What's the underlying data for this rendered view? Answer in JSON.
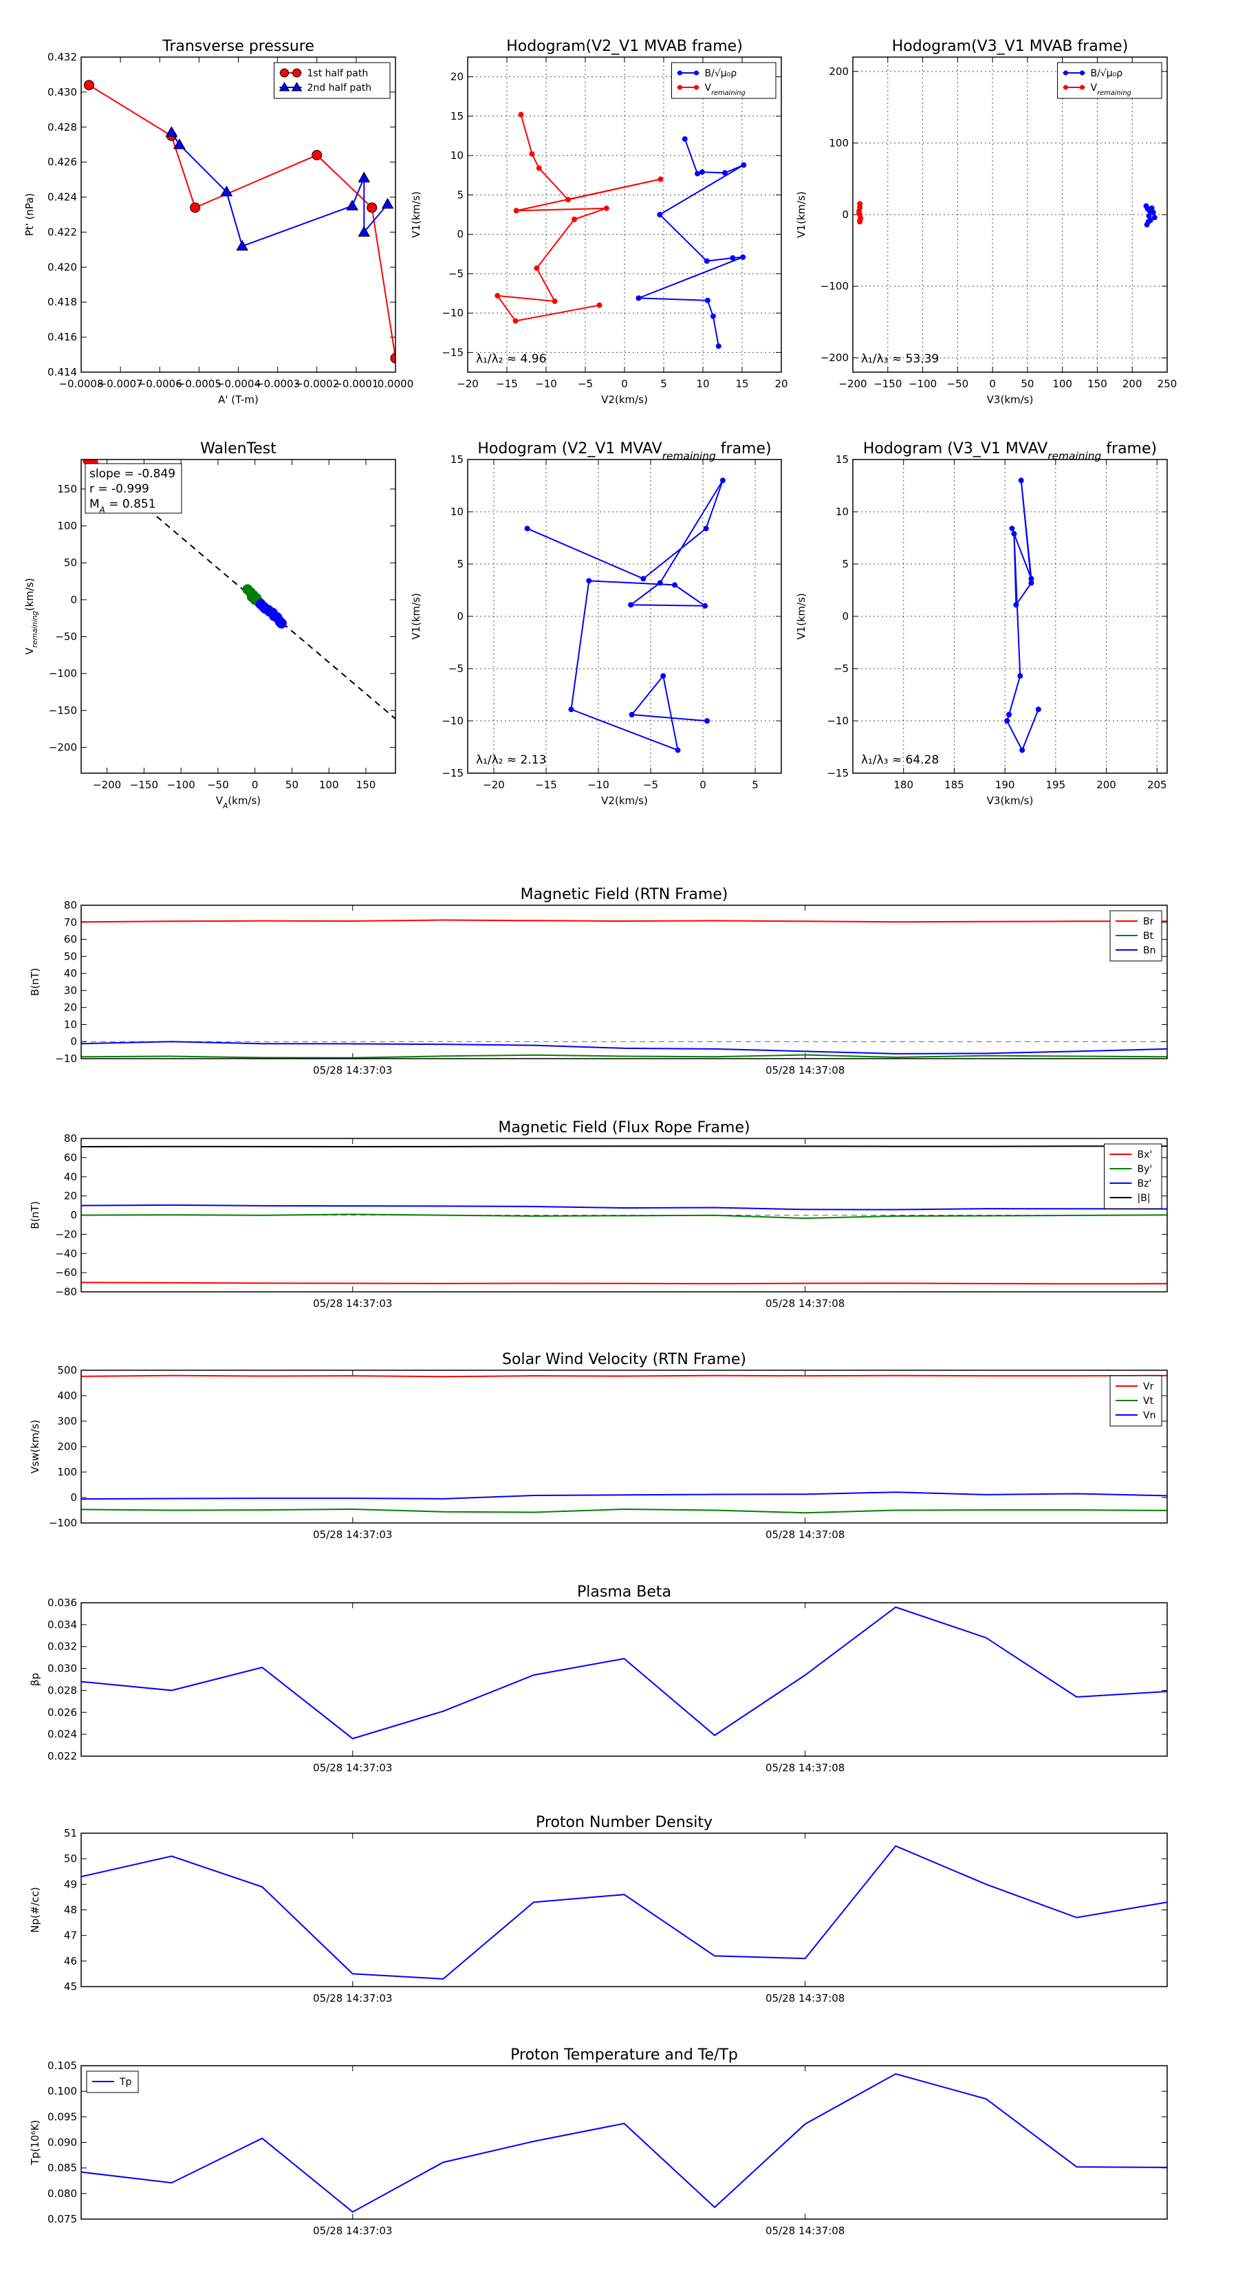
{
  "chart_data": [
    {
      "id": "transverse",
      "type": "line",
      "title": "Transverse pressure",
      "xlabel": "A' (T-m)",
      "ylabel": "Pt' (nPa)",
      "xlim": [
        -0.0008,
        0.0
      ],
      "ylim": [
        0.414,
        0.432
      ],
      "xticks": [
        -0.0008,
        -0.0007,
        -0.0006,
        -0.0005,
        -0.0004,
        -0.0003,
        -0.0002,
        -0.0001,
        0.0
      ],
      "xtick_labels": [
        "−0.0008",
        "−0.0007",
        "−0.0006",
        "−0.0005",
        "−0.0004",
        "−0.0003",
        "−0.0002",
        "−0.0001",
        "0.0000"
      ],
      "yticks": [
        0.414,
        0.416,
        0.418,
        0.42,
        0.422,
        0.424,
        0.426,
        0.428,
        0.43,
        0.432
      ],
      "ytick_labels": [
        "0.414",
        "0.416",
        "0.418",
        "0.420",
        "0.422",
        "0.424",
        "0.426",
        "0.428",
        "0.430",
        "0.432"
      ],
      "legend": "top-right",
      "series": [
        {
          "name": "1st half path",
          "color": "#ff0000",
          "marker": "circle",
          "x": [
            -0.00078,
            -0.00057,
            -0.00051,
            -0.0002,
            -6e-05,
            0.0
          ],
          "y": [
            0.4304,
            0.4275,
            0.4234,
            0.4264,
            0.4234,
            0.4148
          ]
        },
        {
          "name": "2nd half path",
          "color": "#0000ff",
          "marker": "triangle",
          "x": [
            -0.00057,
            -0.00055,
            -0.00043,
            -0.00039,
            -0.00011,
            -8e-05,
            -8e-05,
            -2e-05
          ],
          "y": [
            0.4277,
            0.427,
            0.4243,
            0.4212,
            0.4235,
            0.4251,
            0.422,
            0.4236
          ]
        }
      ]
    },
    {
      "id": "hodo-v2v1-mvab",
      "type": "line",
      "title": "Hodogram(V2_V1 MVAB frame)",
      "xlabel": "V2(km/s)",
      "ylabel": "V1(km/s)",
      "xlim": [
        -20,
        20
      ],
      "ylim": [
        -17.5,
        22.5
      ],
      "xticks": [
        -20,
        -15,
        -10,
        -5,
        0,
        5,
        10,
        15,
        20
      ],
      "yticks": [
        -15,
        -10,
        -5,
        0,
        5,
        10,
        15,
        20
      ],
      "grid": true,
      "annotation": "λ₁/λ₂ ≈ 4.96",
      "legend": "top-right",
      "series": [
        {
          "name": "B/√μ₀ρ",
          "color": "#0000ff",
          "marker": "dot",
          "x": [
            7.7,
            9.3,
            9.9,
            12.8,
            15.2,
            4.5,
            10.5,
            13.8,
            15.1,
            1.8,
            10.6,
            11.3,
            12
          ],
          "y": [
            12.1,
            7.7,
            7.9,
            7.8,
            8.8,
            2.5,
            -3.4,
            -3,
            -2.9,
            -8.1,
            -8.4,
            -10.4,
            -14.2
          ]
        },
        {
          "name": "V_remaining",
          "color": "#ff0000",
          "marker": "dot",
          "x": [
            -13.2,
            -11.8,
            -10.9,
            -7.2,
            4.6,
            -13.8,
            -2.3,
            -6.4,
            -11.2,
            -8.9,
            -16.2,
            -13.9,
            -3.2
          ],
          "y": [
            15.2,
            10.2,
            8.4,
            4.4,
            7,
            3,
            3.3,
            1.9,
            -4.3,
            -8.5,
            -7.8,
            -11,
            -9
          ]
        }
      ]
    },
    {
      "id": "hodo-v3v1-mvab",
      "type": "scatter",
      "title": "Hodogram(V3_V1 MVAB frame)",
      "xlabel": "V3(km/s)",
      "ylabel": "V1(km/s)",
      "xlim": [
        -200,
        250
      ],
      "ylim": [
        -220,
        220
      ],
      "xticks": [
        -200,
        -150,
        -100,
        -50,
        0,
        50,
        100,
        150,
        200,
        250
      ],
      "yticks": [
        -200,
        -100,
        0,
        100,
        200
      ],
      "grid": true,
      "annotation": "λ₁/λ₃ ≈ 53.39",
      "legend": "top-right",
      "series": [
        {
          "name": "B/√μ₀ρ",
          "color": "#0000ff",
          "marker": "dot",
          "x": [
            220,
            222,
            225,
            228,
            224,
            230,
            221,
            226,
            232,
            223
          ],
          "y": [
            12,
            8,
            5,
            9,
            -2,
            3,
            -14,
            -8,
            -4,
            -10
          ]
        },
        {
          "name": "V_remaining",
          "color": "#ff0000",
          "marker": "dot",
          "x": [
            -190,
            -190,
            -191,
            -190,
            -189,
            -190,
            -190,
            -191
          ],
          "y": [
            15,
            10,
            5,
            0,
            -5,
            -8,
            -10,
            2
          ]
        }
      ]
    },
    {
      "id": "walen",
      "type": "scatter",
      "title": "WalenTest",
      "xlabel": "V_A(km/s)",
      "ylabel": "V_remaining(km/s)",
      "xlim": [
        -235,
        190
      ],
      "ylim": [
        -235,
        190
      ],
      "xticks": [
        -200,
        -150,
        -100,
        -50,
        0,
        50,
        100,
        150
      ],
      "yticks": [
        -200,
        -150,
        -100,
        -50,
        0,
        50,
        100,
        150
      ],
      "stats": [
        "slope = -0.849",
        "r = -0.999",
        "M_A = 0.851"
      ],
      "fit": {
        "slope": -0.849,
        "intercept": 0
      },
      "series": [
        {
          "name": "red",
          "color": "#ff0000",
          "x": [
            -220,
            -222,
            -225,
            -223,
            -221,
            -224,
            -219,
            -226
          ],
          "y": [
            188,
            186,
            189,
            185,
            187,
            188,
            186,
            189
          ]
        },
        {
          "name": "green",
          "color": "#008000",
          "x": [
            -10,
            -6,
            -2,
            2,
            4,
            -4,
            0,
            6
          ],
          "y": [
            14,
            10,
            6,
            2,
            -2,
            4,
            0,
            -4
          ]
        },
        {
          "name": "blue",
          "color": "#0000ff",
          "x": [
            8,
            14,
            20,
            26,
            30,
            34,
            24,
            18,
            36,
            12
          ],
          "y": [
            -6,
            -12,
            -16,
            -22,
            -24,
            -30,
            -18,
            -14,
            -32,
            -10
          ]
        }
      ]
    },
    {
      "id": "hodo-v2v1-mvav",
      "type": "line",
      "title": "Hodogram (V2_V1 MVAV_remaining frame)",
      "xlabel": "V2(km/s)",
      "ylabel": "V1(km/s)",
      "xlim": [
        -22.5,
        7.5
      ],
      "ylim": [
        -15,
        15
      ],
      "xticks": [
        -20,
        -15,
        -10,
        -5,
        0,
        5
      ],
      "yticks": [
        -15,
        -10,
        -5,
        0,
        5,
        10,
        15
      ],
      "grid": true,
      "annotation": "λ₁/λ₂ ≈ 2.13",
      "series": [
        {
          "name": "",
          "color": "#0000ff",
          "marker": "dot",
          "x": [
            -16.8,
            -5.7,
            0.3,
            1.9,
            -4.1,
            -6.9,
            0.2,
            -2.7,
            -10.9,
            -12.6,
            -2.4,
            -3.8,
            -6.8,
            0.4
          ],
          "y": [
            8.4,
            3.6,
            8.4,
            13,
            3.2,
            1.1,
            1,
            3,
            3.4,
            -8.9,
            -12.8,
            -5.7,
            -9.4,
            -10
          ]
        }
      ]
    },
    {
      "id": "hodo-v3v1-mvav",
      "type": "line",
      "title": "Hodogram (V3_V1 MVAV_remaining frame)",
      "xlabel": "V3(km/s)",
      "ylabel": "V1(km/s)",
      "xlim": [
        175,
        206
      ],
      "ylim": [
        -15,
        15
      ],
      "xticks": [
        180,
        185,
        190,
        195,
        200,
        205
      ],
      "yticks": [
        -15,
        -10,
        -5,
        0,
        5,
        10,
        15
      ],
      "grid": true,
      "annotation": "λ₁/λ₃ ≈ 64.28",
      "series": [
        {
          "name": "",
          "color": "#0000ff",
          "marker": "dot",
          "x": [
            190.7,
            192.6,
            191.6,
            192.6,
            191.1,
            190.9,
            191.5,
            190.4,
            190.2,
            191.7,
            193.3
          ],
          "y": [
            8.4,
            3.6,
            13,
            3.2,
            1.1,
            7.9,
            -5.7,
            -9.4,
            -10,
            -12.8,
            -8.9
          ]
        }
      ]
    },
    {
      "id": "mag-rtn",
      "type": "line",
      "title": "Magnetic Field (RTN Frame)",
      "ylabel": "B(nT)",
      "ylim": [
        -10,
        80
      ],
      "yticks": [
        -10,
        0,
        10,
        20,
        30,
        40,
        50,
        60,
        70,
        80
      ],
      "x": [
        0,
        1,
        2,
        3,
        4,
        5,
        6,
        7,
        8,
        9,
        10,
        11,
        12
      ],
      "xticks": [
        3,
        8
      ],
      "xtick_labels": [
        "05/28 14:37:03",
        "05/28 14:37:08"
      ],
      "zero_line": true,
      "legend": "top-right",
      "series": [
        {
          "name": "Br",
          "color": "#ff0000",
          "values": [
            70.2,
            70.6,
            70.8,
            70.7,
            71.3,
            71,
            70.7,
            70.9,
            70.6,
            70.2,
            70.4,
            70.6,
            70.6
          ]
        },
        {
          "name": "Bt",
          "color": "#008000",
          "values": [
            -8.9,
            -8.6,
            -9.4,
            -9.5,
            -8.5,
            -7.9,
            -8.6,
            -8.9,
            -7.8,
            -9.2,
            -8.3,
            -8.6,
            -8.9
          ]
        },
        {
          "name": "Bn",
          "color": "#0000ff",
          "values": [
            -1.2,
            0,
            -1.2,
            -1.3,
            -1.6,
            -2.2,
            -3.9,
            -4.3,
            -5.7,
            -7.1,
            -6.9,
            -5.7,
            -4.3
          ]
        }
      ]
    },
    {
      "id": "mag-fr",
      "type": "line",
      "title": "Magnetic Field (Flux Rope Frame)",
      "ylabel": "B(nT)",
      "ylim": [
        -80,
        80
      ],
      "yticks": [
        -80,
        -60,
        -40,
        -20,
        0,
        20,
        40,
        60,
        80
      ],
      "x": [
        0,
        1,
        2,
        3,
        4,
        5,
        6,
        7,
        8,
        9,
        10,
        11,
        12
      ],
      "xticks": [
        3,
        8
      ],
      "xtick_labels": [
        "05/28 14:37:03",
        "05/28 14:37:08"
      ],
      "zero_line": true,
      "legend": "top-right",
      "series": [
        {
          "name": "Bx'",
          "color": "#ff0000",
          "values": [
            -70.2,
            -70.6,
            -70.9,
            -71.1,
            -71.3,
            -71.1,
            -71.2,
            -71.5,
            -71.1,
            -71,
            -71.4,
            -71.6,
            -71.5
          ]
        },
        {
          "name": "By'",
          "color": "#008000",
          "values": [
            0,
            0.3,
            -0.2,
            0.8,
            -0.1,
            -1,
            -0.6,
            -0.2,
            -3.2,
            -1,
            -0.7,
            -0.3,
            0.2
          ]
        },
        {
          "name": "Bz'",
          "color": "#0000ff",
          "values": [
            10,
            10.5,
            9.8,
            9.6,
            9.4,
            9,
            7.5,
            7.9,
            5.9,
            5.7,
            6.7,
            6.6,
            6.5
          ]
        },
        {
          "name": "|B|",
          "color": "#000000",
          "values": [
            71.4,
            71.6,
            71.5,
            71.4,
            71.5,
            71.8,
            71.9,
            71.9,
            71.8,
            71.7,
            71.7,
            71.9,
            71.9
          ]
        }
      ]
    },
    {
      "id": "vsw",
      "type": "line",
      "title": "Solar Wind Velocity (RTN Frame)",
      "ylabel": "Vsw(km/s)",
      "ylim": [
        -100,
        500
      ],
      "yticks": [
        -100,
        0,
        100,
        200,
        300,
        400,
        500
      ],
      "x": [
        0,
        1,
        2,
        3,
        4,
        5,
        6,
        7,
        8,
        9,
        10,
        11,
        12
      ],
      "xticks": [
        3,
        8
      ],
      "xtick_labels": [
        "05/28 14:37:03",
        "05/28 14:37:08"
      ],
      "legend": "top-right",
      "series": [
        {
          "name": "Vr",
          "color": "#ff0000",
          "values": [
            476,
            479,
            477,
            478,
            475,
            478,
            477,
            479,
            478,
            479,
            478,
            478,
            479
          ]
        },
        {
          "name": "Vt",
          "color": "#008000",
          "values": [
            -47,
            -50,
            -49,
            -46,
            -56,
            -58,
            -46,
            -50,
            -60,
            -50,
            -49,
            -49,
            -51
          ]
        },
        {
          "name": "Vn",
          "color": "#0000ff",
          "values": [
            -6,
            -4,
            -3,
            -3,
            -5,
            8,
            10,
            12,
            13,
            21,
            11,
            15,
            7
          ]
        }
      ]
    },
    {
      "id": "beta",
      "type": "line",
      "title": "Plasma Beta",
      "ylabel": "βp",
      "ylim": [
        0.022,
        0.036
      ],
      "yticks": [
        0.022,
        0.024,
        0.026,
        0.028,
        0.03,
        0.032,
        0.034,
        0.036
      ],
      "ytick_labels": [
        "0.022",
        "0.024",
        "0.026",
        "0.028",
        "0.030",
        "0.032",
        "0.034",
        "0.036"
      ],
      "x": [
        0,
        1,
        2,
        3,
        4,
        5,
        6,
        7,
        8,
        9,
        10,
        11,
        12
      ],
      "xticks": [
        3,
        8
      ],
      "xtick_labels": [
        "05/28 14:37:03",
        "05/28 14:37:08"
      ],
      "series": [
        {
          "name": "",
          "color": "#0000ff",
          "values": [
            0.0288,
            0.028,
            0.0301,
            0.0236,
            0.0261,
            0.0294,
            0.0309,
            0.0239,
            0.0294,
            0.0356,
            0.0328,
            0.0274,
            0.0279
          ]
        }
      ]
    },
    {
      "id": "np",
      "type": "line",
      "title": "Proton Number Density",
      "ylabel": "Np(#/cc)",
      "ylim": [
        45,
        51
      ],
      "yticks": [
        45,
        46,
        47,
        48,
        49,
        50,
        51
      ],
      "x": [
        0,
        1,
        2,
        3,
        4,
        5,
        6,
        7,
        8,
        9,
        10,
        11,
        12
      ],
      "xticks": [
        3,
        8
      ],
      "xtick_labels": [
        "05/28 14:37:03",
        "05/28 14:37:08"
      ],
      "series": [
        {
          "name": "",
          "color": "#0000ff",
          "values": [
            49.3,
            50.1,
            48.9,
            45.5,
            45.3,
            48.3,
            48.6,
            46.2,
            46.1,
            50.5,
            49,
            47.7,
            48.3
          ]
        }
      ]
    },
    {
      "id": "tp",
      "type": "line",
      "title": "Proton Temperature and Te/Tp",
      "ylabel": "Tp(10⁶K)",
      "ylim": [
        0.075,
        0.105
      ],
      "yticks": [
        0.075,
        0.08,
        0.085,
        0.09,
        0.095,
        0.1,
        0.105
      ],
      "ytick_labels": [
        "0.075",
        "0.080",
        "0.085",
        "0.090",
        "0.095",
        "0.100",
        "0.105"
      ],
      "x": [
        0,
        1,
        2,
        3,
        4,
        5,
        6,
        7,
        8,
        9,
        10,
        11,
        12
      ],
      "xticks": [
        3,
        8
      ],
      "xtick_labels": [
        "05/28 14:37:03",
        "05/28 14:37:08"
      ],
      "legend": "top-left",
      "series": [
        {
          "name": "Tp",
          "color": "#0000ff",
          "values": [
            0.0842,
            0.0821,
            0.0908,
            0.0764,
            0.0861,
            0.0902,
            0.0937,
            0.0773,
            0.0936,
            0.1034,
            0.0985,
            0.0852,
            0.0851
          ]
        }
      ]
    }
  ]
}
